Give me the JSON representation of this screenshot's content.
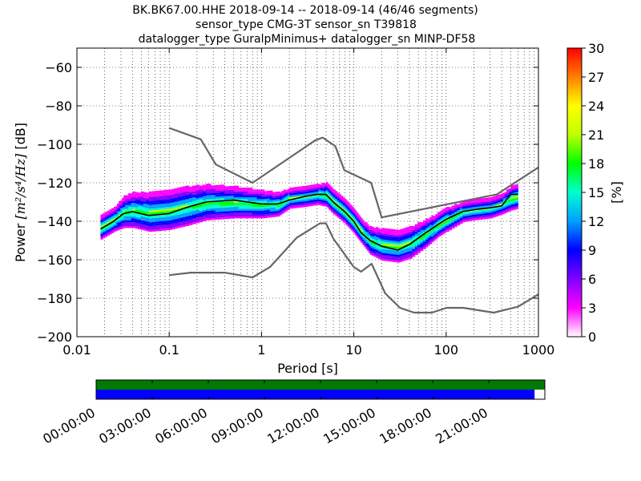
{
  "title": {
    "line1": "BK.BK67.00.HHE   2018-09-14 -- 2018-09-14  (46/46 segments)",
    "line2": "sensor_type CMG-3T sensor_sn T39818",
    "line3": "datalogger_type GuralpMinimus+ datalogger_sn MINP-DF58"
  },
  "colorbar": {
    "label": "[%]",
    "min": 0,
    "max": 30,
    "ticks": [
      "0",
      "3",
      "6",
      "9",
      "12",
      "15",
      "18",
      "21",
      "24",
      "27",
      "30"
    ],
    "colormap": [
      "#ffffff",
      "#ff00ff",
      "#8000ff",
      "#0000ff",
      "#00a0ff",
      "#00ffd0",
      "#00ff00",
      "#c0ff00",
      "#ffff00",
      "#ff8000",
      "#ff0000"
    ]
  },
  "chart_data": [
    {
      "type": "heatmap",
      "subtype": "probabilistic power spectral density",
      "xlabel": "Period [s]",
      "ylabel_prefix": "Power ",
      "ylabel_units": "m²/s⁴/Hz",
      "ylabel_suffix": " [dB]",
      "xscale": "log",
      "xlim": [
        0.01,
        1000
      ],
      "ylim": [
        -200,
        -50
      ],
      "xticks": [
        {
          "value": 0.01,
          "label": "0.01"
        },
        {
          "value": 0.1,
          "label": "0.1"
        },
        {
          "value": 1,
          "label": "1"
        },
        {
          "value": 10,
          "label": "10"
        },
        {
          "value": 100,
          "label": "100"
        },
        {
          "value": 1000,
          "label": "1000"
        }
      ],
      "yticks": [
        {
          "value": -200,
          "label": "−200"
        },
        {
          "value": -180,
          "label": "−180"
        },
        {
          "value": -160,
          "label": "−160"
        },
        {
          "value": -140,
          "label": "−140"
        },
        {
          "value": -120,
          "label": "−120"
        },
        {
          "value": -100,
          "label": "−100"
        },
        {
          "value": -80,
          "label": "−80"
        },
        {
          "value": -60,
          "label": "−60"
        }
      ],
      "grid": true,
      "series": [
        {
          "role": "noise-model-high",
          "color": "#666666",
          "points": [
            [
              0.1,
              -91.5
            ],
            [
              0.22,
              -97.4
            ],
            [
              0.32,
              -110.5
            ],
            [
              0.8,
              -120
            ],
            [
              3.8,
              -98
            ],
            [
              4.6,
              -96.5
            ],
            [
              6.3,
              -101
            ],
            [
              7.9,
              -113.5
            ],
            [
              15.4,
              -120
            ],
            [
              20,
              -138
            ],
            [
              354.8,
              -126
            ],
            [
              1000,
              -112
            ]
          ]
        },
        {
          "role": "noise-model-low",
          "color": "#666666",
          "points": [
            [
              0.1,
              -168
            ],
            [
              0.17,
              -166.7
            ],
            [
              0.4,
              -166.7
            ],
            [
              0.8,
              -169.2
            ],
            [
              1.24,
              -163.7
            ],
            [
              2.4,
              -148.6
            ],
            [
              4.3,
              -141.1
            ],
            [
              5,
              -141.1
            ],
            [
              6,
              -149
            ],
            [
              10,
              -163.8
            ],
            [
              12,
              -166.2
            ],
            [
              15.6,
              -162.1
            ],
            [
              21.9,
              -177.5
            ],
            [
              31.6,
              -185
            ],
            [
              45,
              -187.5
            ],
            [
              70,
              -187.5
            ],
            [
              101,
              -185
            ],
            [
              154,
              -185
            ],
            [
              328,
              -187.5
            ],
            [
              600,
              -184.4
            ],
            [
              1000,
              -178
            ]
          ]
        },
        {
          "role": "mode",
          "color": "#000000",
          "points": [
            [
              0.018,
              -144
            ],
            [
              0.025,
              -140
            ],
            [
              0.032,
              -136
            ],
            [
              0.04,
              -135
            ],
            [
              0.06,
              -137
            ],
            [
              0.1,
              -136
            ],
            [
              0.15,
              -133
            ],
            [
              0.25,
              -130
            ],
            [
              0.5,
              -129
            ],
            [
              1,
              -131
            ],
            [
              1.5,
              -131
            ],
            [
              2,
              -129
            ],
            [
              3,
              -127
            ],
            [
              4,
              -126
            ],
            [
              5,
              -126
            ],
            [
              6,
              -130
            ],
            [
              8,
              -135
            ],
            [
              10,
              -140
            ],
            [
              12,
              -146
            ],
            [
              15,
              -150
            ],
            [
              20,
              -153
            ],
            [
              30,
              -155
            ],
            [
              40,
              -152
            ],
            [
              60,
              -146
            ],
            [
              80,
              -142
            ],
            [
              100,
              -139
            ],
            [
              150,
              -135
            ],
            [
              200,
              -134
            ],
            [
              300,
              -133
            ],
            [
              400,
              -132
            ],
            [
              500,
              -126
            ],
            [
              600,
              -126
            ]
          ]
        }
      ],
      "psd_band": {
        "points": [
          [
            0.018,
            -143,
            6
          ],
          [
            0.025,
            -139,
            6
          ],
          [
            0.032,
            -135,
            8
          ],
          [
            0.04,
            -134,
            9
          ],
          [
            0.06,
            -135,
            10
          ],
          [
            0.1,
            -134,
            10
          ],
          [
            0.15,
            -132,
            10
          ],
          [
            0.25,
            -130,
            9
          ],
          [
            0.5,
            -130,
            8
          ],
          [
            1,
            -131,
            7
          ],
          [
            1.5,
            -131,
            6
          ],
          [
            2,
            -128,
            5
          ],
          [
            3,
            -127,
            5
          ],
          [
            4,
            -126,
            5
          ],
          [
            5,
            -126,
            6
          ],
          [
            6,
            -130,
            6
          ],
          [
            8,
            -135,
            6
          ],
          [
            10,
            -140,
            6
          ],
          [
            12,
            -145,
            6
          ],
          [
            15,
            -150,
            7
          ],
          [
            20,
            -152,
            8
          ],
          [
            30,
            -153,
            8
          ],
          [
            40,
            -151,
            8
          ],
          [
            60,
            -146,
            7
          ],
          [
            80,
            -142,
            6
          ],
          [
            100,
            -139,
            6
          ],
          [
            150,
            -135,
            5
          ],
          [
            200,
            -134,
            5
          ],
          [
            300,
            -133,
            5
          ],
          [
            400,
            -131,
            5
          ],
          [
            500,
            -128,
            6
          ],
          [
            600,
            -127,
            6
          ]
        ]
      }
    },
    {
      "type": "timeline",
      "role": "data coverage",
      "xlim": [
        "00:00:00",
        "24:00:00"
      ],
      "xticks": [
        "00:00:00",
        "03:00:00",
        "06:00:00",
        "09:00:00",
        "12:00:00",
        "15:00:00",
        "18:00:00",
        "21:00:00"
      ],
      "rows": [
        {
          "name": "",
          "color": "#007a00",
          "start_hours": 0,
          "end_hours": 24
        },
        {
          "name": "",
          "color": "#0000ff",
          "start_hours": 0,
          "end_hours": 23.45
        }
      ]
    }
  ]
}
